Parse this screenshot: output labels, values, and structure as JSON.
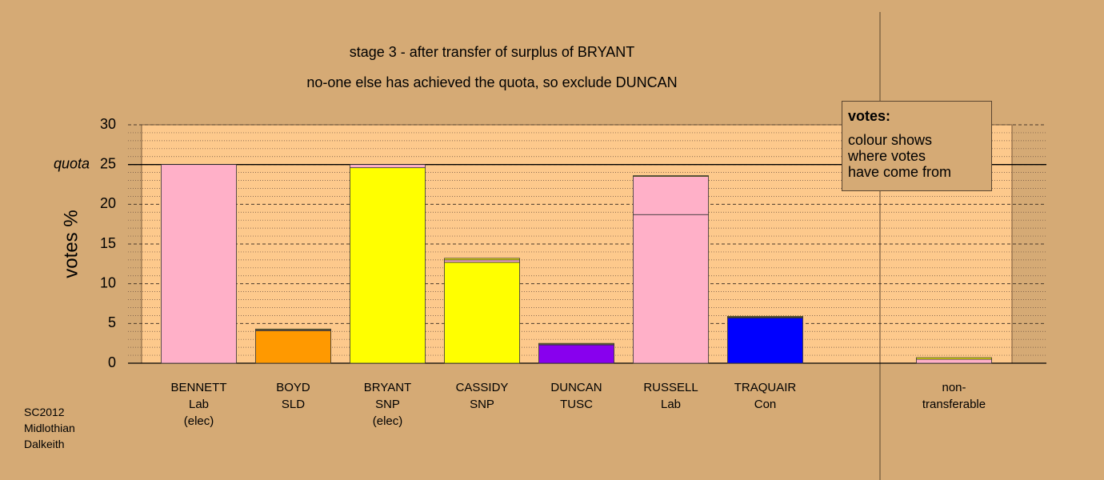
{
  "chart_data": {
    "type": "stacked_bar",
    "title": "stage 3 - after transfer of surplus of BRYANT",
    "subtitle": "no-one else has achieved the quota, so exclude DUNCAN",
    "y_label": "votes %",
    "quota": {
      "value": 25,
      "label": "quota"
    },
    "legend_title": "votes:",
    "legend_text": "colour shows\nwhere votes\nhave come from",
    "footnote": "SC2012\nMidlothian\nDalkeith",
    "categories": [
      "BENNETT\nLab\n(elec)",
      "BOYD\nSLD",
      "BRYANT\nSNP\n(elec)",
      "CASSIDY\nSNP",
      "DUNCAN\nTUSC",
      "RUSSELL\nLab",
      "TRAQUAIR\nCon",
      "non-\ntransferable"
    ],
    "series": [
      {
        "color": "#ffb0c8",
        "values": [
          25,
          0,
          0,
          0,
          0,
          18.7,
          0,
          0
        ]
      },
      {
        "color": "#ff9900",
        "values": [
          0,
          4.1,
          0,
          0,
          0,
          0,
          0,
          0
        ]
      },
      {
        "color": "#ffff00",
        "values": [
          0,
          0,
          24.6,
          12.7,
          0,
          0,
          0,
          0
        ]
      },
      {
        "color": "#8800ee",
        "values": [
          0,
          0,
          0,
          0,
          2.3,
          0,
          0,
          0
        ]
      },
      {
        "color": "#0000ff",
        "values": [
          0,
          0,
          0,
          0,
          0,
          0,
          5.7,
          0
        ]
      },
      {
        "color": "#ffb0c8",
        "values": [
          0,
          0.1,
          0.4,
          0.3,
          0.1,
          4.8,
          0.1,
          0.5
        ]
      },
      {
        "color": "#ffff00",
        "values": [
          0,
          0.1,
          0,
          0.2,
          0.1,
          0.1,
          0.1,
          0.2
        ]
      }
    ],
    "ylim": [
      0,
      30
    ],
    "yticks": [
      0,
      5,
      10,
      15,
      20,
      25,
      30
    ],
    "yminorticks": [
      1,
      2,
      3,
      4,
      6,
      7,
      8,
      9,
      11,
      12,
      13,
      14,
      16,
      17,
      18,
      19,
      21,
      22,
      23,
      24,
      26,
      27,
      28,
      29
    ],
    "grid": true
  }
}
